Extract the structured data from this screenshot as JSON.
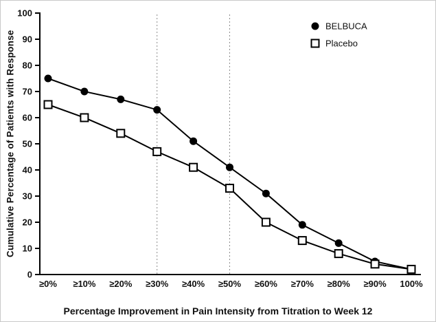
{
  "chart_data": {
    "type": "line",
    "title": "",
    "xlabel": "Percentage Improvement in Pain Intensity from Titration to Week 12",
    "ylabel": "Cumulative Percentage of Patients with Response",
    "categories": [
      "≥0%",
      "≥10%",
      "≥20%",
      "≥30%",
      "≥40%",
      "≥50%",
      "≥60%",
      "≥70%",
      "≥80%",
      "≥90%",
      "100%"
    ],
    "series": [
      {
        "name": "BELBUCA",
        "marker": "filled-circle",
        "values": [
          75,
          70,
          67,
          63,
          51,
          41,
          31,
          19,
          12,
          5,
          2
        ]
      },
      {
        "name": "Placebo",
        "marker": "open-square",
        "values": [
          65,
          60,
          54,
          47,
          41,
          33,
          20,
          13,
          8,
          4,
          2
        ]
      }
    ],
    "ylim": [
      0,
      100
    ],
    "ytick_step": 10,
    "reference_lines_at": [
      "≥30%",
      "≥50%"
    ],
    "grid": "off",
    "legend_position": "top-right-inside",
    "colors": {
      "line": "#000000",
      "marker_fill": "#000000",
      "open_marker_fill": "#ffffff",
      "reference_line": "#8a8a8a",
      "background": "#ffffff",
      "text": "#111111"
    }
  }
}
